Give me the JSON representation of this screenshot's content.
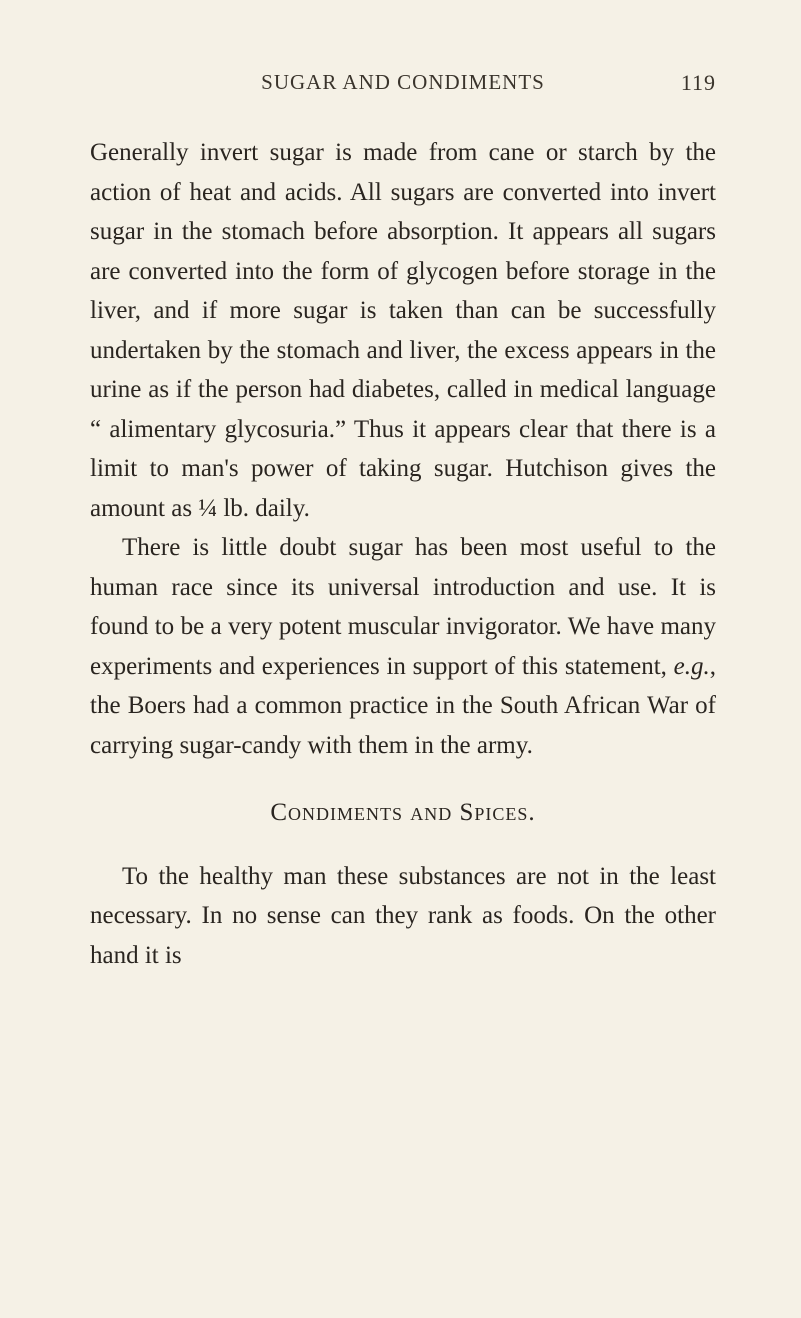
{
  "page": {
    "header_title": "SUGAR AND CONDIMENTS",
    "page_number": "119",
    "background_color": "#f5f1e6",
    "text_color": "#2a2520",
    "font_family": "Georgia, Times New Roman, serif",
    "body_font_size": 25,
    "line_height": 1.58
  },
  "paragraphs": {
    "p1": "Generally invert sugar is made from cane or starch by the action of heat and acids. All sugars are converted into invert sugar in the stomach before absorption. It appears all sugars are converted into the form of glycogen before storage in the liver, and if more sugar is taken than can be successfully undertaken by the stomach and liver, the excess appears in the urine as if the person had diabetes, called in medical language “ alimentary glycosuria.” Thus it appears clear that there is a limit to man's power of taking sugar. Hutchison gives the amount as ¼ lb. daily.",
    "p2_prefix": "There is little doubt sugar has been most useful to the human race since its universal introduction and use. It is found to be a very potent muscular invigorator. We have many experiments and experiences in support of this statement, ",
    "p2_italic": "e.g.",
    "p2_suffix": ", the Boers had a common practice in the South African War of carrying sugar-candy with them in the army.",
    "section_heading": "Condiments and Spices.",
    "p3": "To the healthy man these substances are not in the least necessary. In no sense can they rank as foods. On the other hand it is"
  }
}
